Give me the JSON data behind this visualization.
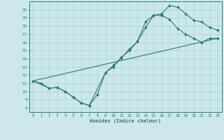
{
  "xlabel": "Humidex (Indice chaleur)",
  "xlim": [
    -0.5,
    23.5
  ],
  "ylim": [
    7.5,
    21.0
  ],
  "yticks": [
    8,
    9,
    10,
    11,
    12,
    13,
    14,
    15,
    16,
    17,
    18,
    19,
    20
  ],
  "xticks": [
    0,
    1,
    2,
    3,
    4,
    5,
    6,
    7,
    8,
    9,
    10,
    11,
    12,
    13,
    14,
    15,
    16,
    17,
    18,
    19,
    20,
    21,
    22,
    23
  ],
  "line_color": "#2e7d6e",
  "bg_color": "#cce8eb",
  "grid_color": "#b0d4d8",
  "line1_x": [
    0,
    1,
    2,
    3,
    4,
    5,
    6,
    7,
    8,
    9,
    10,
    11,
    12,
    13,
    14,
    15,
    16,
    17,
    18,
    19,
    20,
    21,
    22,
    23
  ],
  "line1_y": [
    11.3,
    11.0,
    10.4,
    10.5,
    10.0,
    9.3,
    8.6,
    8.3,
    9.6,
    12.3,
    13.0,
    14.2,
    15.0,
    16.1,
    17.8,
    19.3,
    19.5,
    20.5,
    20.3,
    19.5,
    18.7,
    18.5,
    17.8,
    17.5
  ],
  "line2_x": [
    0,
    2,
    3,
    4,
    5,
    6,
    7,
    9,
    10,
    11,
    12,
    13,
    14,
    15,
    16,
    17,
    18,
    19,
    20,
    21,
    22,
    23
  ],
  "line2_y": [
    11.3,
    10.4,
    10.5,
    10.0,
    9.3,
    8.6,
    8.3,
    12.3,
    13.2,
    14.1,
    15.2,
    16.1,
    18.5,
    19.3,
    19.3,
    18.8,
    17.7,
    17.0,
    16.5,
    16.0,
    16.5,
    16.5
  ],
  "line3_x": [
    0,
    23
  ],
  "line3_y": [
    11.3,
    16.5
  ]
}
